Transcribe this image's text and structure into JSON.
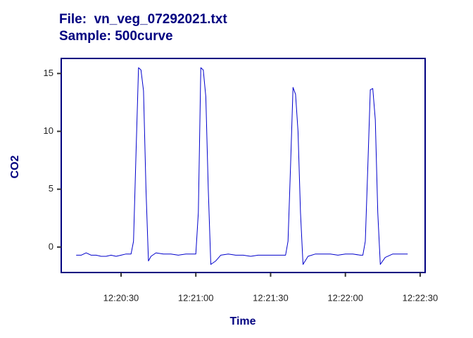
{
  "chart_data": {
    "type": "line",
    "title": "File:  vn_veg_07292021.txt",
    "subtitle": "Sample: 500curve",
    "xlabel": "Time",
    "ylabel": "CO2",
    "color": "#0000cc",
    "x": [
      "12:20:12",
      "12:20:14",
      "12:20:16",
      "12:20:18",
      "12:20:20",
      "12:20:22",
      "12:20:24",
      "12:20:26",
      "12:20:28",
      "12:20:30",
      "12:20:32",
      "12:20:34",
      "12:20:35",
      "12:20:36",
      "12:20:37",
      "12:20:38",
      "12:20:39",
      "12:20:40",
      "12:20:41",
      "12:20:42",
      "12:20:44",
      "12:20:47",
      "12:20:50",
      "12:20:53",
      "12:20:56",
      "12:20:59",
      "12:21:00",
      "12:21:01",
      "12:21:02",
      "12:21:03",
      "12:21:04",
      "12:21:05",
      "12:21:06",
      "12:21:08",
      "12:21:10",
      "12:21:13",
      "12:21:16",
      "12:21:19",
      "12:21:22",
      "12:21:25",
      "12:21:28",
      "12:21:31",
      "12:21:34",
      "12:21:36",
      "12:21:37",
      "12:21:38",
      "12:21:39",
      "12:21:40",
      "12:21:41",
      "12:21:42",
      "12:21:43",
      "12:21:45",
      "12:21:48",
      "12:21:51",
      "12:21:54",
      "12:21:57",
      "12:22:00",
      "12:22:03",
      "12:22:06",
      "12:22:07",
      "12:22:08",
      "12:22:09",
      "12:22:10",
      "12:22:11",
      "12:22:12",
      "12:22:13",
      "12:22:14",
      "12:22:16",
      "12:22:19",
      "12:22:22",
      "12:22:25"
    ],
    "values": [
      -0.7,
      -0.7,
      -0.5,
      -0.7,
      -0.7,
      -0.8,
      -0.8,
      -0.7,
      -0.8,
      -0.7,
      -0.6,
      -0.6,
      0.5,
      8,
      15.5,
      15.3,
      13.5,
      5,
      -1.2,
      -0.8,
      -0.5,
      -0.6,
      -0.6,
      -0.7,
      -0.6,
      -0.6,
      -0.6,
      3,
      15.5,
      15.3,
      13,
      5,
      -1.5,
      -1.2,
      -0.7,
      -0.6,
      -0.7,
      -0.7,
      -0.8,
      -0.7,
      -0.7,
      -0.7,
      -0.7,
      -0.7,
      0.5,
      7,
      13.8,
      13.2,
      10,
      3,
      -1.5,
      -0.8,
      -0.6,
      -0.6,
      -0.6,
      -0.7,
      -0.6,
      -0.6,
      -0.7,
      -0.7,
      0.5,
      7,
      13.6,
      13.7,
      11,
      3,
      -1.5,
      -0.9,
      -0.6,
      -0.6,
      -0.6
    ],
    "xlim": [
      "12:20:06",
      "12:22:32"
    ],
    "ylim": [
      -2.2,
      16.3
    ],
    "xticks": [
      "12:20:30",
      "12:21:00",
      "12:21:30",
      "12:22:00",
      "12:22:30"
    ],
    "yticks": [
      0,
      5,
      10,
      15
    ]
  }
}
